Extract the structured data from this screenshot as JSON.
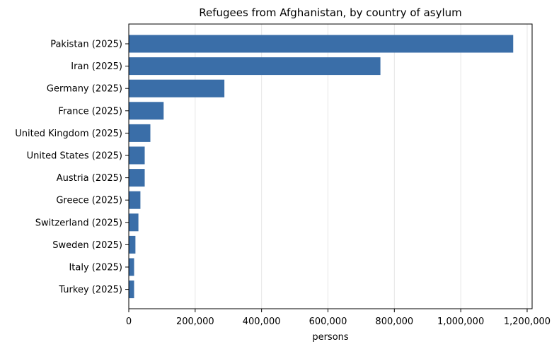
{
  "chart_data": {
    "type": "bar",
    "orientation": "horizontal",
    "title": "Refugees from Afghanistan, by country of asylum",
    "xlabel": "persons",
    "ylabel": "",
    "xlim": [
      0,
      1215000
    ],
    "x_ticks": [
      0,
      200000,
      400000,
      600000,
      800000,
      1000000,
      1200000
    ],
    "x_tick_labels": [
      "0",
      "200,000",
      "400,000",
      "600,000",
      "800,000",
      "1,000,000",
      "1,200,000"
    ],
    "grid": "vertical",
    "bar_color": "#3a6ea8",
    "categories": [
      "Pakistan (2025)",
      "Iran (2025)",
      "Germany (2025)",
      "France (2025)",
      "United Kingdom (2025)",
      "United States (2025)",
      "Austria (2025)",
      "Greece (2025)",
      "Switzerland (2025)",
      "Sweden (2025)",
      "Italy (2025)",
      "Turkey (2025)"
    ],
    "values": [
      1158000,
      758000,
      288000,
      105000,
      65000,
      48000,
      48000,
      35000,
      29000,
      20000,
      16000,
      16000
    ]
  }
}
